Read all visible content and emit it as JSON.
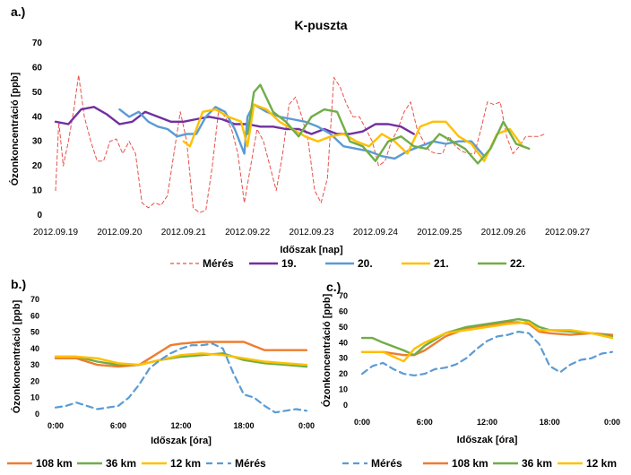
{
  "chart_data": [
    {
      "panel_label": "a.)",
      "type": "line",
      "title": "K-puszta",
      "xlabel": "Időszak [nap]",
      "ylabel": "Ózonkoncentráció [ppb]",
      "ylim": [
        0,
        70
      ],
      "yticks": [
        "0",
        "10",
        "20",
        "30",
        "40",
        "50",
        "60",
        "70"
      ],
      "xlim": [
        0,
        8
      ],
      "xticks": [
        "2012.09.19",
        "2012.09.20",
        "2012.09.21",
        "2012.09.22",
        "2012.09.23",
        "2012.09.24",
        "2012.09.25",
        "2012.09.26",
        "2012.09.27"
      ],
      "grid": false,
      "legend_position": "bottom",
      "series": [
        {
          "name": "Mérés",
          "color": "#e8504a",
          "dash": "dashed",
          "x": [
            0.0,
            0.05,
            0.12,
            0.2,
            0.28,
            0.36,
            0.45,
            0.55,
            0.65,
            0.75,
            0.85,
            0.95,
            1.05,
            1.15,
            1.25,
            1.35,
            1.45,
            1.55,
            1.65,
            1.75,
            1.85,
            1.95,
            2.05,
            2.15,
            2.25,
            2.35,
            2.45,
            2.55,
            2.65,
            2.75,
            2.85,
            2.95,
            3.05,
            3.15,
            3.25,
            3.35,
            3.45,
            3.55,
            3.65,
            3.75,
            3.85,
            3.95,
            4.05,
            4.15,
            4.25,
            4.35,
            4.45,
            4.55,
            4.65,
            4.75,
            4.85,
            4.95,
            5.05,
            5.15,
            5.25,
            5.35,
            5.45,
            5.55,
            5.65,
            5.75,
            5.85,
            5.95,
            6.05,
            6.15,
            6.25,
            6.35,
            6.45,
            6.55,
            6.65,
            6.75,
            6.85,
            6.95,
            7.05,
            7.15,
            7.25,
            7.35,
            7.45,
            7.55,
            7.65
          ],
          "y": [
            10,
            38,
            20,
            30,
            42,
            57,
            40,
            30,
            22,
            22,
            30,
            31,
            25,
            30,
            25,
            5,
            3,
            5,
            4,
            8,
            25,
            42,
            30,
            3,
            1,
            2,
            20,
            43,
            40,
            35,
            25,
            5,
            20,
            35,
            30,
            20,
            10,
            25,
            45,
            48,
            40,
            30,
            10,
            5,
            15,
            56,
            52,
            45,
            40,
            40,
            35,
            30,
            20,
            22,
            30,
            35,
            42,
            46,
            35,
            30,
            26,
            25,
            25,
            32,
            28,
            26,
            25,
            25,
            35,
            46,
            45,
            46,
            32,
            25,
            28,
            32,
            32,
            32,
            33
          ]
        },
        {
          "name": "19.",
          "color": "#7030a0",
          "dash": "solid",
          "x": [
            0.0,
            0.2,
            0.4,
            0.6,
            0.8,
            1.0,
            1.2,
            1.4,
            1.6,
            1.8,
            2.0,
            2.2,
            2.4,
            2.6,
            2.8,
            3.0,
            3.2,
            3.4,
            3.6,
            3.8,
            4.0,
            4.2,
            4.4,
            4.6,
            4.8,
            5.0,
            5.2,
            5.4,
            5.6
          ],
          "y": [
            38,
            37,
            43,
            44,
            41,
            37,
            38,
            42,
            40,
            38,
            38,
            39,
            40,
            39,
            37,
            37,
            36,
            36,
            35,
            35,
            33,
            35,
            33,
            33,
            34,
            37,
            37,
            36,
            33
          ]
        },
        {
          "name": "20.",
          "color": "#5b9bd5",
          "dash": "solid",
          "x": [
            1.0,
            1.15,
            1.3,
            1.45,
            1.6,
            1.75,
            1.9,
            2.05,
            2.2,
            2.35,
            2.5,
            2.65,
            2.8,
            2.95,
            3.0,
            3.1,
            3.3,
            3.5,
            3.7,
            3.9,
            4.1,
            4.3,
            4.5,
            4.7,
            4.9,
            5.1,
            5.3,
            5.5,
            5.7,
            5.9,
            6.1,
            6.3,
            6.5,
            6.7
          ],
          "y": [
            43,
            40,
            42,
            38,
            36,
            35,
            32,
            33,
            33,
            40,
            44,
            42,
            35,
            25,
            40,
            45,
            42,
            40,
            39,
            38,
            36,
            33,
            28,
            27,
            26,
            24,
            23,
            26,
            28,
            30,
            29,
            30,
            30,
            24
          ]
        },
        {
          "name": "21.",
          "color": "#ffc000",
          "dash": "solid",
          "x": [
            2.0,
            2.1,
            2.3,
            2.5,
            2.7,
            2.9,
            3.0,
            3.1,
            3.3,
            3.5,
            3.7,
            3.9,
            4.1,
            4.3,
            4.5,
            4.7,
            4.9,
            5.1,
            5.3,
            5.5,
            5.7,
            5.9,
            6.1,
            6.3,
            6.5,
            6.7,
            6.9,
            7.1,
            7.3
          ],
          "y": [
            30,
            28,
            42,
            43,
            40,
            38,
            28,
            45,
            43,
            38,
            35,
            32,
            30,
            32,
            33,
            30,
            28,
            33,
            30,
            25,
            36,
            38,
            38,
            32,
            29,
            22,
            33,
            35,
            28
          ]
        },
        {
          "name": "22.",
          "color": "#70ad47",
          "dash": "solid",
          "x": [
            3.0,
            3.1,
            3.2,
            3.4,
            3.6,
            3.8,
            4.0,
            4.2,
            4.4,
            4.6,
            4.8,
            5.0,
            5.2,
            5.4,
            5.6,
            5.8,
            6.0,
            6.2,
            6.4,
            6.6,
            6.8,
            7.0,
            7.2,
            7.4
          ],
          "y": [
            33,
            50,
            53,
            42,
            38,
            32,
            40,
            43,
            42,
            30,
            28,
            22,
            30,
            32,
            28,
            27,
            33,
            30,
            27,
            21,
            27,
            38,
            29,
            27
          ]
        }
      ]
    },
    {
      "panel_label": "b.)",
      "type": "line",
      "xlabel": "Időszak [óra]",
      "ylabel": "Ózonkoncentráció [ppb]",
      "ylim": [
        0,
        70
      ],
      "yticks": [
        "0",
        "10",
        "20",
        "30",
        "40",
        "50",
        "60",
        "70"
      ],
      "xlim": [
        0,
        24
      ],
      "xticks": [
        "0:00",
        "6:00",
        "12:00",
        "18:00",
        "0:00"
      ],
      "grid": false,
      "legend_position": "bottom",
      "series": [
        {
          "name": "108 km",
          "color": "#ed7d31",
          "dash": "solid",
          "x": [
            0,
            2,
            4,
            6,
            8,
            9,
            10,
            11,
            12,
            14,
            16,
            18,
            20,
            22,
            24
          ],
          "y": [
            34,
            34,
            30,
            29,
            30,
            34,
            38,
            42,
            43,
            44,
            44,
            44,
            39,
            39,
            39
          ]
        },
        {
          "name": "36 km",
          "color": "#70ad47",
          "dash": "solid",
          "x": [
            0,
            2,
            4,
            6,
            8,
            10,
            12,
            14,
            16,
            18,
            20,
            22,
            24
          ],
          "y": [
            35,
            35,
            32,
            30,
            30,
            33,
            35,
            36,
            37,
            33,
            31,
            30,
            29
          ]
        },
        {
          "name": "12 km",
          "color": "#ffc000",
          "dash": "solid",
          "x": [
            0,
            2,
            4,
            6,
            8,
            10,
            12,
            14,
            16,
            18,
            20,
            22,
            24
          ],
          "y": [
            35,
            35,
            34,
            31,
            30,
            33,
            36,
            37,
            36,
            34,
            32,
            31,
            30
          ]
        },
        {
          "name": "Mérés",
          "color": "#5b9bd5",
          "dash": "dashed",
          "x": [
            0,
            1,
            2,
            3,
            4,
            5,
            6,
            7,
            8,
            9,
            10,
            11,
            12,
            13,
            14,
            15,
            16,
            17,
            18,
            19,
            20,
            21,
            22,
            23,
            24
          ],
          "y": [
            4,
            5,
            7,
            5,
            3,
            4,
            5,
            10,
            18,
            28,
            33,
            37,
            40,
            42,
            42,
            43,
            40,
            25,
            12,
            10,
            5,
            1,
            2,
            3,
            2
          ]
        }
      ]
    },
    {
      "panel_label": "c.)",
      "type": "line",
      "xlabel": "Időszak [óra]",
      "ylabel": "Ózonkoncentráció [ppb]",
      "ylim": [
        0,
        70
      ],
      "yticks": [
        "0",
        "10",
        "20",
        "30",
        "40",
        "50",
        "60",
        "70"
      ],
      "xlim": [
        0,
        24
      ],
      "xticks": [
        "0:00",
        "6:00",
        "12:00",
        "18:00",
        "0:00"
      ],
      "grid": false,
      "legend_position": "bottom",
      "series": [
        {
          "name": "Mérés",
          "color": "#5b9bd5",
          "dash": "dashed",
          "x": [
            0,
            1,
            2,
            3,
            4,
            5,
            6,
            7,
            8,
            9,
            10,
            11,
            12,
            13,
            14,
            15,
            16,
            17,
            18,
            19,
            20,
            21,
            22,
            23,
            24
          ],
          "y": [
            20,
            25,
            27,
            23,
            20,
            19,
            20,
            23,
            24,
            26,
            30,
            36,
            41,
            44,
            45,
            47,
            46,
            39,
            25,
            21,
            26,
            29,
            30,
            33,
            34
          ]
        },
        {
          "name": "108 km",
          "color": "#ed7d31",
          "dash": "solid",
          "x": [
            0,
            2,
            4,
            5,
            6,
            8,
            10,
            12,
            14,
            15,
            16,
            17,
            18,
            20,
            22,
            24
          ],
          "y": [
            34,
            34,
            32,
            32,
            35,
            44,
            49,
            51,
            53,
            53,
            52,
            47,
            46,
            45,
            46,
            45
          ]
        },
        {
          "name": "36 km",
          "color": "#70ad47",
          "dash": "solid",
          "x": [
            0,
            1,
            2,
            4,
            5,
            6,
            8,
            10,
            12,
            14,
            15,
            16,
            17,
            18,
            20,
            22,
            24
          ],
          "y": [
            43,
            43,
            40,
            35,
            32,
            38,
            46,
            50,
            52,
            54,
            55,
            54,
            50,
            48,
            47,
            46,
            44
          ]
        },
        {
          "name": "12 km",
          "color": "#ffc000",
          "dash": "solid",
          "x": [
            0,
            2,
            3,
            4,
            5,
            6,
            8,
            10,
            12,
            14,
            16,
            17,
            18,
            20,
            22,
            24
          ],
          "y": [
            34,
            34,
            31,
            28,
            36,
            40,
            46,
            48,
            50,
            52,
            53,
            48,
            48,
            48,
            46,
            43
          ]
        }
      ]
    }
  ]
}
